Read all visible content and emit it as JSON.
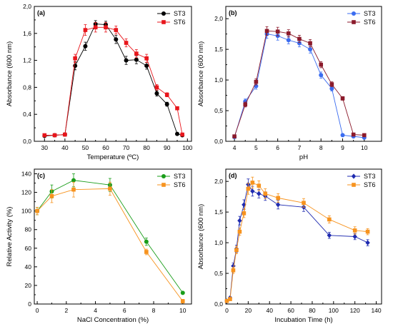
{
  "chart_data": [
    {
      "type": "line",
      "panel_label": "(a)",
      "xlabel": "Temperature (ºC)",
      "ylabel": "Absorbance (600 nm)",
      "xlim": [
        25,
        102
      ],
      "ylim": [
        0,
        2.0
      ],
      "x_ticks": [
        30,
        40,
        50,
        60,
        70,
        80,
        90,
        100
      ],
      "x_tick_labels": [
        "30",
        "40",
        "50",
        "60",
        "70",
        "80",
        "90",
        "100"
      ],
      "y_ticks": [
        0,
        0.4,
        0.8,
        1.2,
        1.6,
        2.0
      ],
      "y_tick_labels": [
        "0,0",
        "0,4",
        "0,8",
        "1,2",
        "1,6",
        "2,0"
      ],
      "legend_position": "top-right",
      "series": [
        {
          "name": "ST3",
          "color": "#000000",
          "marker": "circle",
          "x": [
            30,
            35,
            40,
            45,
            50,
            55,
            60,
            65,
            70,
            75,
            80,
            85,
            90,
            95,
            97.5
          ],
          "y": [
            0.08,
            0.09,
            0.1,
            1.12,
            1.41,
            1.74,
            1.73,
            1.51,
            1.2,
            1.21,
            1.12,
            0.71,
            0.55,
            0.11,
            0.09
          ],
          "err": [
            0.01,
            0.01,
            0.01,
            0.06,
            0.06,
            0.05,
            0.05,
            0.06,
            0.06,
            0.06,
            0.05,
            0.04,
            0.03,
            0.01,
            0.01
          ]
        },
        {
          "name": "ST6",
          "color": "#e8151b",
          "marker": "square",
          "x": [
            30,
            35,
            40,
            45,
            50,
            55,
            60,
            65,
            70,
            75,
            80,
            85,
            90,
            95,
            97.5
          ],
          "y": [
            0.09,
            0.09,
            0.1,
            1.23,
            1.65,
            1.69,
            1.69,
            1.65,
            1.46,
            1.3,
            1.23,
            0.8,
            0.69,
            0.49,
            0.1
          ],
          "err": [
            0.01,
            0.01,
            0.01,
            0.06,
            0.08,
            0.07,
            0.07,
            0.06,
            0.06,
            0.06,
            0.06,
            0.04,
            0.03,
            0.02,
            0.01
          ]
        }
      ]
    },
    {
      "type": "line",
      "panel_label": "(b)",
      "xlabel": "pH",
      "ylabel": "Absorbance (600 nm)",
      "xlim": [
        3.6,
        10.8
      ],
      "ylim": [
        0,
        2.2
      ],
      "x_ticks": [
        4,
        5,
        6,
        7,
        8,
        9,
        10
      ],
      "x_tick_labels": [
        "4",
        "5",
        "6",
        "7",
        "8",
        "9",
        "10"
      ],
      "y_ticks": [
        0,
        0.5,
        1.0,
        1.5,
        2.0
      ],
      "y_tick_labels": [
        "0,0",
        "0,5",
        "1,0",
        "1,5",
        "2,0"
      ],
      "legend_position": "top-right",
      "series": [
        {
          "name": "ST3",
          "color": "#3b6cf0",
          "marker": "circle",
          "x": [
            4,
            4.5,
            5,
            5.5,
            6,
            6.5,
            7,
            7.5,
            8,
            8.5,
            9,
            9.5,
            10
          ],
          "y": [
            0.07,
            0.65,
            0.9,
            1.75,
            1.72,
            1.65,
            1.6,
            1.5,
            1.08,
            0.86,
            0.1,
            0.08,
            0.06
          ],
          "err": [
            0.01,
            0.04,
            0.05,
            0.07,
            0.07,
            0.06,
            0.06,
            0.06,
            0.05,
            0.04,
            0.01,
            0.01,
            0.01
          ]
        },
        {
          "name": "ST6",
          "color": "#8b1a2b",
          "marker": "square",
          "x": [
            4,
            4.5,
            5,
            5.5,
            6,
            6.5,
            7,
            7.5,
            8,
            8.5,
            9,
            9.5,
            10
          ],
          "y": [
            0.08,
            0.6,
            0.97,
            1.8,
            1.79,
            1.76,
            1.67,
            1.6,
            1.25,
            0.93,
            0.7,
            0.11,
            0.1
          ],
          "err": [
            0.01,
            0.04,
            0.05,
            0.07,
            0.07,
            0.06,
            0.06,
            0.06,
            0.05,
            0.04,
            0.03,
            0.01,
            0.01
          ]
        }
      ]
    },
    {
      "type": "line",
      "panel_label": "(c)",
      "xlabel": "NaCl Concentration (%)",
      "ylabel": "Relative Activity (%)",
      "xlim": [
        -0.2,
        10.6
      ],
      "ylim": [
        0,
        145
      ],
      "x_ticks": [
        0,
        2,
        4,
        6,
        8,
        10
      ],
      "x_tick_labels": [
        "0",
        "2",
        "4",
        "6",
        "8",
        "10"
      ],
      "y_ticks": [
        0,
        20,
        40,
        60,
        80,
        100,
        120,
        140
      ],
      "y_tick_labels": [
        "0",
        "20",
        "40",
        "60",
        "80",
        "100",
        "120",
        "140"
      ],
      "legend_position": "top-right",
      "series": [
        {
          "name": "ST3",
          "color": "#1a9d1a",
          "marker": "circle",
          "x": [
            0,
            1,
            2.5,
            5,
            7.5,
            10
          ],
          "y": [
            100,
            121,
            133,
            128,
            67,
            12
          ],
          "err": [
            4,
            7,
            7,
            7,
            4,
            1
          ]
        },
        {
          "name": "ST6",
          "color": "#f7931e",
          "marker": "square",
          "x": [
            0,
            1,
            2.5,
            5,
            7.5,
            10
          ],
          "y": [
            100,
            116,
            123,
            124,
            56,
            3
          ],
          "err": [
            4,
            7,
            8,
            7,
            3,
            2
          ]
        }
      ]
    },
    {
      "type": "line",
      "panel_label": "(d)",
      "xlabel": "Incubation Time (h)",
      "ylabel": "Absorbance (600 nm)",
      "xlim": [
        -1,
        145
      ],
      "ylim": [
        0,
        2.2
      ],
      "x_ticks": [
        0,
        20,
        40,
        60,
        80,
        100,
        120,
        140
      ],
      "x_tick_labels": [
        "0",
        "20",
        "40",
        "60",
        "80",
        "100",
        "120",
        "140"
      ],
      "y_ticks": [
        0,
        0.5,
        1.0,
        1.5,
        2.0
      ],
      "y_tick_labels": [
        "0,0",
        "0,5",
        "1,0",
        "1,5",
        "2,0"
      ],
      "legend_position": "top-right",
      "series": [
        {
          "name": "ST3",
          "color": "#1f2bb0",
          "marker": "diamond",
          "x": [
            0,
            3,
            6,
            9,
            12,
            16,
            20,
            24,
            30,
            36,
            48,
            72,
            96,
            120,
            132
          ],
          "y": [
            0.05,
            0.1,
            0.62,
            0.9,
            1.36,
            1.62,
            1.95,
            1.84,
            1.8,
            1.76,
            1.62,
            1.58,
            1.12,
            1.1,
            1.0
          ],
          "err": [
            0.01,
            0.02,
            0.05,
            0.06,
            0.07,
            0.08,
            0.09,
            0.08,
            0.07,
            0.07,
            0.07,
            0.07,
            0.05,
            0.05,
            0.05
          ]
        },
        {
          "name": "ST6",
          "color": "#f7931e",
          "marker": "square",
          "x": [
            0,
            3,
            6,
            9,
            12,
            16,
            20,
            24,
            30,
            36,
            48,
            72,
            96,
            120,
            132
          ],
          "y": [
            0.05,
            0.08,
            0.55,
            0.88,
            1.18,
            1.48,
            1.88,
            1.98,
            1.93,
            1.8,
            1.73,
            1.65,
            1.38,
            1.2,
            1.18
          ],
          "err": [
            0.01,
            0.02,
            0.05,
            0.06,
            0.06,
            0.07,
            0.09,
            0.09,
            0.08,
            0.08,
            0.07,
            0.07,
            0.06,
            0.06,
            0.05
          ]
        }
      ]
    }
  ]
}
